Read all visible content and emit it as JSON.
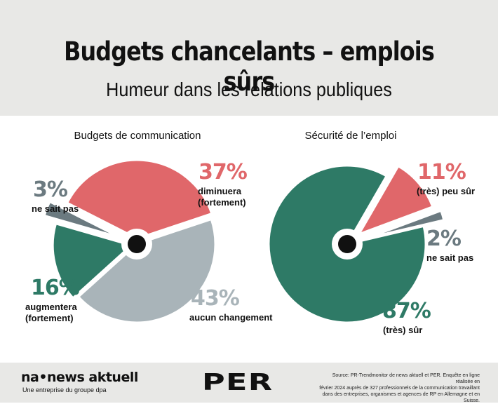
{
  "header": {
    "title": "Budgets chancelants – emplois sûrs",
    "subtitle": "Humeur dans les relations publiques"
  },
  "chart_data": [
    {
      "type": "pie",
      "title": "Budgets de communication",
      "slices": [
        {
          "label": "diminuera (fortement)",
          "value": 37,
          "display": "37%",
          "color": "#e0676a"
        },
        {
          "label": "aucun changement",
          "value": 43,
          "display": "43%",
          "color": "#a9b4b9"
        },
        {
          "label": "augmentera (fortement)",
          "value": 16,
          "display": "16%",
          "color": "#2e7a66"
        },
        {
          "label": "ne sait pas",
          "value": 3,
          "display": "3%",
          "color": "#6b7a80"
        }
      ]
    },
    {
      "type": "pie",
      "title": "Sécurité de l’emploi",
      "slices": [
        {
          "label": "(très) peu sûr",
          "value": 11,
          "display": "11%",
          "color": "#e0676a"
        },
        {
          "label": "ne sait pas",
          "value": 2,
          "display": "2%",
          "color": "#6b7a80"
        },
        {
          "label": "(très) sûr",
          "value": 87,
          "display": "87%",
          "color": "#2e7a66"
        }
      ]
    }
  ],
  "labels": {
    "left": {
      "dim_line1": "diminuera",
      "dim_line2": "(fortement)",
      "aug_line1": "augmentera",
      "aug_line2": "(fortement)",
      "nsp": "ne sait pas",
      "aucun": "aucun changement"
    },
    "right": {
      "peu": "(très) peu sûr",
      "nsp": "ne sait pas",
      "sur": "(très) sûr"
    }
  },
  "footer": {
    "brand": "na•news aktuell",
    "brand_sub": "Une entreprise du groupe dpa",
    "per_logo": "PER",
    "source_1": "Source: PR-Trendmonitor de news aktuell et PER. Enquête en ligne réalisée en",
    "source_2": "février 2024 auprès de 327 professionnels de la communication travaillant",
    "source_3": "dans des entreprises, organismes et agences de RP en Allemagne et en Suisse."
  }
}
